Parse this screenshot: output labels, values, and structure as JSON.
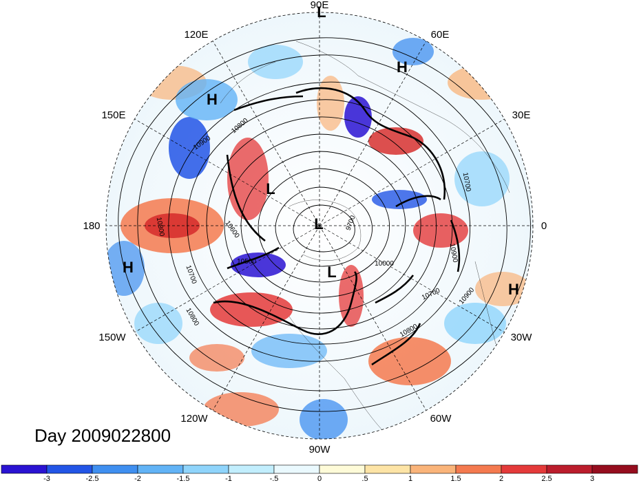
{
  "map": {
    "projection": "north-polar-stereographic",
    "longitude_labels": [
      "90E",
      "60E",
      "30E",
      "0",
      "30W",
      "60W",
      "90W",
      "120W",
      "150W",
      "180",
      "150E",
      "120E"
    ],
    "pressure_systems": [
      {
        "label": "L",
        "name": "low-top"
      },
      {
        "label": "H",
        "name": "high-60e"
      },
      {
        "label": "H",
        "name": "high-120e"
      },
      {
        "label": "L",
        "name": "low-siberia"
      },
      {
        "label": "L",
        "name": "low-pole"
      },
      {
        "label": "L",
        "name": "low-canada"
      },
      {
        "label": "H",
        "name": "high-pacific"
      },
      {
        "label": "H",
        "name": "high-atlantic"
      }
    ],
    "contour_labels": [
      "10900",
      "10800",
      "10600",
      "10500",
      "10700",
      "10800",
      "9700",
      "10000",
      "10700",
      "10900",
      "10900",
      "10700",
      "10800",
      "10800"
    ],
    "colors": {
      "ocean_background": "#f4fbff",
      "warm_anomaly": "#d7302f",
      "cold_anomaly": "#2a5ee0"
    }
  },
  "title": "Day 2009022800",
  "colorbar": {
    "ticks": [
      "-3",
      "-2.5",
      "-2",
      "-1.5",
      "-1",
      "-.5",
      "0",
      ".5",
      "1",
      "1.5",
      "2",
      "2.5",
      "3"
    ],
    "colors": [
      "#2a13d2",
      "#2255e6",
      "#3f8ff0",
      "#62b3f6",
      "#8fd4fb",
      "#c2eefd",
      "#eaf9fe",
      "#fefbd8",
      "#fde4a6",
      "#fab47a",
      "#f47a4f",
      "#e43a3a",
      "#bb1d2c",
      "#950d1e"
    ]
  }
}
